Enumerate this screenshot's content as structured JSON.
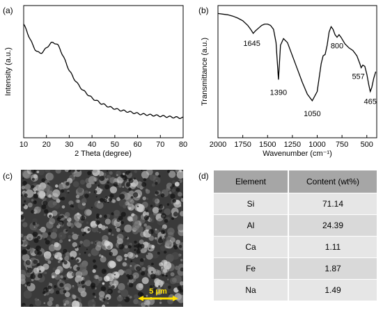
{
  "panel_labels": {
    "a": "(a)",
    "b": "(b)",
    "c": "(c)",
    "d": "(d)"
  },
  "chart_data": [
    {
      "type": "line",
      "xlabel": "2 Theta (degree)",
      "ylabel": "Intensity (a.u.)",
      "xlim": [
        10,
        80
      ],
      "x_ticks": [
        "10",
        "20",
        "30",
        "40",
        "50",
        "60",
        "70",
        "80"
      ],
      "y_ticks_shown": false,
      "grid": false,
      "x": [
        10,
        11,
        12,
        13,
        14,
        15,
        16,
        17,
        18,
        19,
        20,
        21,
        22,
        23,
        24,
        25,
        26,
        27,
        28,
        29,
        30,
        32,
        34,
        36,
        38,
        40,
        42,
        44,
        46,
        48,
        50,
        52,
        55,
        58,
        61,
        64,
        67,
        70,
        73,
        76,
        80
      ],
      "y": [
        0.86,
        0.82,
        0.78,
        0.74,
        0.7,
        0.67,
        0.65,
        0.64,
        0.645,
        0.66,
        0.68,
        0.7,
        0.715,
        0.72,
        0.715,
        0.7,
        0.67,
        0.63,
        0.59,
        0.55,
        0.51,
        0.45,
        0.4,
        0.36,
        0.33,
        0.3,
        0.28,
        0.26,
        0.245,
        0.23,
        0.22,
        0.21,
        0.2,
        0.19,
        0.18,
        0.175,
        0.17,
        0.165,
        0.16,
        0.155,
        0.15
      ]
    },
    {
      "type": "line",
      "xlabel": "Wavenumber (cm⁻¹)",
      "ylabel": "Transmittance (a.u.)",
      "xlim": [
        2000,
        400
      ],
      "x_ticks": [
        "2000",
        "1750",
        "1500",
        "1250",
        "1000",
        "750",
        "500"
      ],
      "y_ticks_shown": false,
      "grid": false,
      "x": [
        2000,
        1900,
        1850,
        1800,
        1750,
        1700,
        1670,
        1645,
        1620,
        1590,
        1560,
        1530,
        1500,
        1470,
        1440,
        1415,
        1390,
        1370,
        1340,
        1300,
        1250,
        1200,
        1150,
        1100,
        1050,
        1000,
        960,
        940,
        920,
        900,
        880,
        860,
        840,
        820,
        800,
        780,
        760,
        720,
        680,
        640,
        600,
        570,
        557,
        540,
        520,
        500,
        480,
        465,
        450,
        430,
        410
      ],
      "y": [
        0.94,
        0.93,
        0.92,
        0.905,
        0.885,
        0.85,
        0.82,
        0.79,
        0.81,
        0.83,
        0.85,
        0.86,
        0.86,
        0.85,
        0.82,
        0.72,
        0.44,
        0.7,
        0.75,
        0.72,
        0.62,
        0.52,
        0.42,
        0.33,
        0.28,
        0.35,
        0.56,
        0.62,
        0.63,
        0.7,
        0.8,
        0.84,
        0.82,
        0.78,
        0.76,
        0.78,
        0.76,
        0.71,
        0.68,
        0.66,
        0.62,
        0.56,
        0.53,
        0.55,
        0.54,
        0.48,
        0.4,
        0.35,
        0.38,
        0.45,
        0.5
      ],
      "peak_labels": [
        "1645",
        "1390",
        "1050",
        "800",
        "557",
        "465"
      ]
    },
    {
      "type": "table",
      "headers": [
        "Element",
        "Content (wt%)"
      ],
      "rows": [
        [
          "Si",
          "71.14"
        ],
        [
          "Al",
          "24.39"
        ],
        [
          "Ca",
          "1.11"
        ],
        [
          "Fe",
          "1.87"
        ],
        [
          "Na",
          "1.49"
        ]
      ]
    }
  ],
  "sem_image": {
    "scale_bar": "5 μm",
    "scale_bar_color": "#ffe000"
  }
}
